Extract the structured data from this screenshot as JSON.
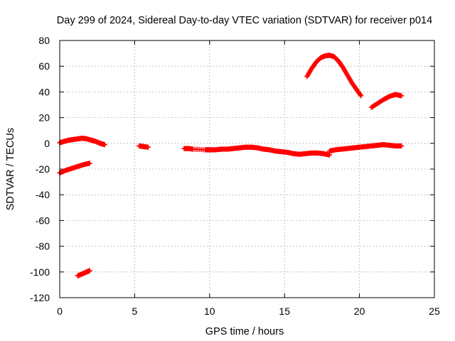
{
  "chart_data": {
    "type": "scatter",
    "title": "Day 299 of 2024, Sidereal Day-to-day VTEC variation (SDTVAR) for receiver p014",
    "xlabel": "GPS time / hours",
    "ylabel": "SDTVAR / TECUs",
    "xlim": [
      0,
      25
    ],
    "ylim": [
      -120,
      80
    ],
    "xticks": [
      "0",
      "5",
      "10",
      "15",
      "20",
      "25"
    ],
    "yticks": [
      "80",
      "60",
      "40",
      "20",
      "0",
      "-20",
      "-40",
      "-60",
      "-80",
      "-100",
      "-120"
    ],
    "grid": true,
    "marker": "+",
    "color": "#ff0000",
    "series": [
      {
        "name": "seg-a",
        "x": [
          0.0,
          0.3,
          0.6,
          0.9,
          1.2,
          1.5,
          1.8,
          2.1,
          2.4,
          2.7,
          3.0
        ],
        "y": [
          0.5,
          1.5,
          2.5,
          3.0,
          3.5,
          4.0,
          3.5,
          2.5,
          1.5,
          0.0,
          -1.0
        ]
      },
      {
        "name": "seg-b",
        "x": [
          0.0,
          0.4,
          0.8,
          1.2,
          1.6,
          2.0
        ],
        "y": [
          -23,
          -21,
          -19.5,
          -18,
          -16.5,
          -15.5
        ]
      },
      {
        "name": "seg-c",
        "x": [
          1.2,
          1.5,
          1.8,
          2.0
        ],
        "y": [
          -103,
          -101.5,
          -100,
          -99
        ]
      },
      {
        "name": "seg-d",
        "x": [
          5.3,
          5.6,
          5.9
        ],
        "y": [
          -2,
          -2.5,
          -3
        ]
      },
      {
        "name": "seg-e",
        "x": [
          8.3,
          8.6,
          8.9,
          9.7,
          10.0,
          10.4,
          10.8,
          11.2,
          11.6,
          12.0,
          12.4,
          12.8,
          13.2,
          13.6,
          14.0,
          14.4,
          14.8,
          15.2,
          15.6,
          16.0,
          16.4,
          16.8,
          17.2,
          17.6,
          18.0
        ],
        "y": [
          -4,
          -4,
          -4.5,
          -5,
          -5,
          -5,
          -4.5,
          -4.5,
          -4,
          -3.5,
          -3,
          -3,
          -3.5,
          -4.5,
          -5,
          -6,
          -6.5,
          -7,
          -8,
          -8.5,
          -8,
          -7.5,
          -7.5,
          -8,
          -9
        ]
      },
      {
        "name": "seg-f",
        "x": [
          18.0,
          18.4,
          18.8,
          19.2,
          19.6,
          20.0,
          20.4,
          20.8,
          21.2,
          21.6,
          22.0,
          22.4,
          22.8
        ],
        "y": [
          -6,
          -5,
          -4.5,
          -4,
          -3.5,
          -3,
          -2.5,
          -2,
          -1.5,
          -1,
          -1.5,
          -2,
          -2
        ]
      },
      {
        "name": "seg-g",
        "x": [
          16.5,
          16.8,
          17.1,
          17.4,
          17.7,
          18.0,
          18.3,
          18.6,
          18.9,
          19.2,
          19.5,
          19.8,
          20.1
        ],
        "y": [
          52,
          58,
          63,
          66.5,
          68,
          68.5,
          67.5,
          64,
          59,
          53,
          47,
          42,
          37
        ]
      },
      {
        "name": "seg-h",
        "x": [
          20.8,
          21.2,
          21.6,
          22.0,
          22.4,
          22.8
        ],
        "y": [
          28,
          31,
          34,
          36.5,
          38,
          37
        ]
      }
    ]
  }
}
